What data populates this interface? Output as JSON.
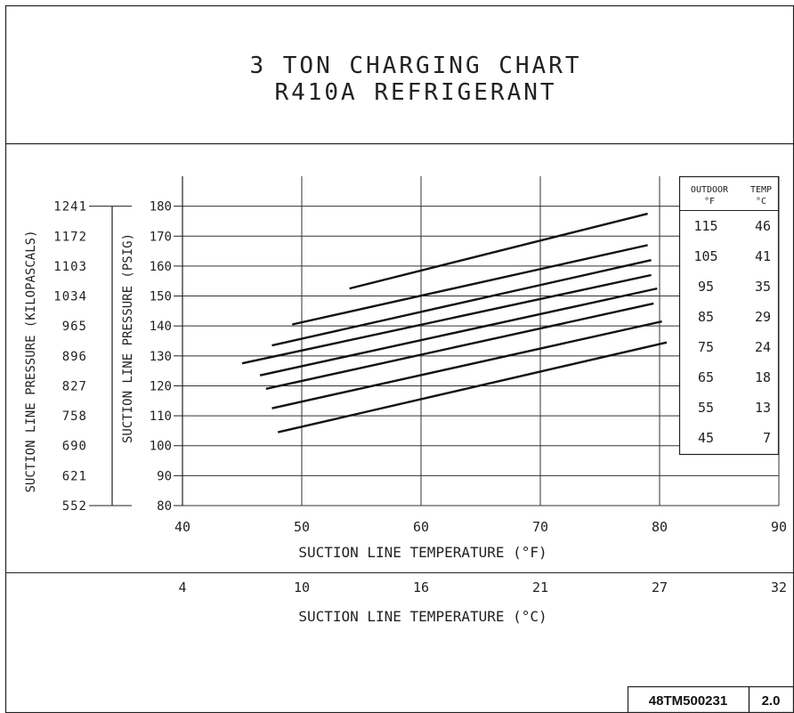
{
  "chart_data": {
    "type": "line",
    "title": "3 TON CHARGING CHART",
    "subtitle": "R410A REFRIGERANT",
    "xlabel": "SUCTION LINE TEMPERATURE (°F)",
    "xlabel_secondary": "SUCTION LINE TEMPERATURE (°C)",
    "ylabel": "SUCTION LINE PRESSURE (PSIG)",
    "ylabel_secondary": "SUCTION LINE PRESSURE (KILOPASCALS)",
    "xlim": [
      40,
      90
    ],
    "ylim": [
      80,
      190
    ],
    "x_ticks": [
      40,
      50,
      60,
      70,
      80,
      90
    ],
    "x_ticks_secondary": [
      {
        "at": 40,
        "label": "4"
      },
      {
        "at": 50,
        "label": "10"
      },
      {
        "at": 60,
        "label": "16"
      },
      {
        "at": 70,
        "label": "21"
      },
      {
        "at": 80,
        "label": "27"
      },
      {
        "at": 90,
        "label": "32"
      }
    ],
    "y_ticks": [
      80,
      90,
      100,
      110,
      120,
      130,
      140,
      150,
      160,
      170,
      180
    ],
    "y_ticks_secondary": [
      {
        "at": 180,
        "label": "1241"
      },
      {
        "at": 170,
        "label": "1172"
      },
      {
        "at": 160,
        "label": "1103"
      },
      {
        "at": 150,
        "label": "1034"
      },
      {
        "at": 140,
        "label": "965"
      },
      {
        "at": 130,
        "label": "896"
      },
      {
        "at": 120,
        "label": "827"
      },
      {
        "at": 110,
        "label": "758"
      },
      {
        "at": 100,
        "label": "690"
      },
      {
        "at": 90,
        "label": "621"
      },
      {
        "at": 80,
        "label": "552"
      }
    ],
    "grid": true,
    "legend_position": "top-right",
    "legend_header": {
      "outdoor": "OUTDOOR",
      "temp": "TEMP",
      "unit_f": "°F",
      "unit_c": "°C"
    },
    "legend_rows": [
      {
        "f": "115",
        "c": "46"
      },
      {
        "f": "105",
        "c": "41"
      },
      {
        "f": "95",
        "c": "35"
      },
      {
        "f": "85",
        "c": "29"
      },
      {
        "f": "75",
        "c": "24"
      },
      {
        "f": "65",
        "c": "18"
      },
      {
        "f": "55",
        "c": "13"
      },
      {
        "f": "45",
        "c": "7"
      }
    ],
    "series": [
      {
        "x": [
          54,
          79
        ],
        "y": [
          152.5,
          177.5
        ]
      },
      {
        "x": [
          49.2,
          79
        ],
        "y": [
          140.5,
          167
        ]
      },
      {
        "x": [
          47.5,
          79.3
        ],
        "y": [
          133.5,
          162
        ]
      },
      {
        "x": [
          45,
          79.3
        ],
        "y": [
          127.5,
          157
        ]
      },
      {
        "x": [
          46.5,
          79.8
        ],
        "y": [
          123.5,
          152.5
        ]
      },
      {
        "x": [
          47,
          79.5
        ],
        "y": [
          119,
          147.5
        ]
      },
      {
        "x": [
          47.5,
          80.2
        ],
        "y": [
          112.5,
          141.5
        ]
      },
      {
        "x": [
          48,
          80.6
        ],
        "y": [
          104.5,
          134.5
        ]
      }
    ],
    "document_number": "48TM500231",
    "revision": "2.0"
  }
}
